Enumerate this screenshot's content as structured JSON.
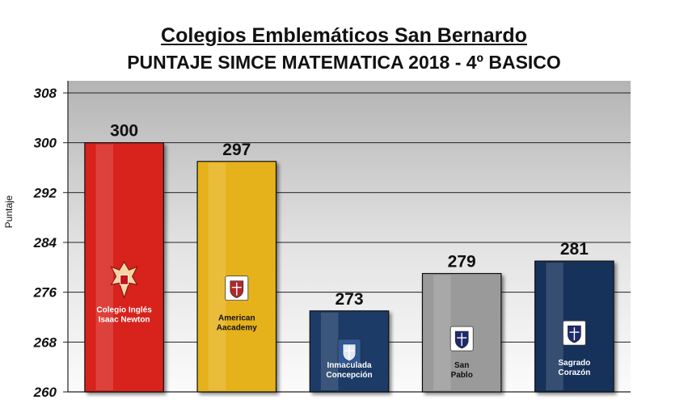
{
  "title": "Colegios Emblemáticos San Bernardo",
  "subtitle": "PUNTAJE SIMCE MATEMATICA 2018 - 4º BASICO",
  "chart_data": {
    "type": "bar",
    "categories": [
      "Colegio Inglés Isaac Newton",
      "American Aacademy",
      "Inmaculada Concepción",
      "San Pablo",
      "Sagrado Corazón"
    ],
    "category_lines": [
      [
        "Colegio Inglés",
        "Isaac Newton"
      ],
      [
        "American",
        "Aacademy"
      ],
      [
        "Inmaculada",
        "Concepción"
      ],
      [
        "San",
        "Pablo"
      ],
      [
        "Sagrado",
        "Corazón"
      ]
    ],
    "values": [
      300,
      297,
      273,
      279,
      281
    ],
    "data_labels": [
      "300",
      "297",
      "273",
      "279",
      "281"
    ],
    "colors": [
      "#d8241c",
      "#e6b21f",
      "#1a3a66",
      "#9a9a9a",
      "#16305a"
    ],
    "label_colors": [
      "#ffffff",
      "#111111",
      "#ffffff",
      "#111111",
      "#ffffff"
    ],
    "icons": [
      "crest-eagle-icon",
      "academy-crest-icon",
      "shield-crest-icon",
      "saint-paul-crest-icon",
      "sagrado-corazon-crest-icon"
    ],
    "ylabel": "Puntaje",
    "ylim": [
      260,
      308
    ],
    "yticks": [
      260,
      268,
      276,
      284,
      292,
      300,
      308
    ],
    "grid": true,
    "legend": false
  }
}
